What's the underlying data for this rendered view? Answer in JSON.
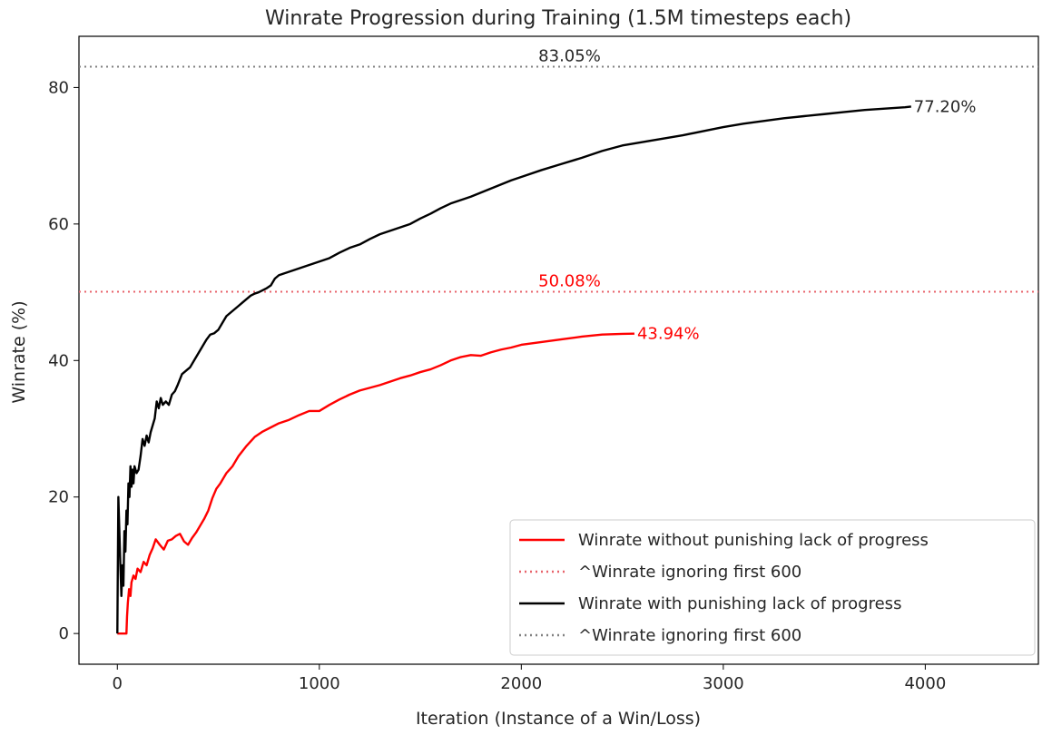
{
  "chart_data": {
    "type": "line",
    "title": "Winrate Progression during Training (1.5M timesteps each)",
    "xlabel": "Iteration (Instance of a Win/Loss)",
    "ylabel": "Winrate (%)",
    "xlim": [
      -190,
      4560
    ],
    "ylim": [
      -4.5,
      87.5
    ],
    "xticks": [
      0,
      1000,
      2000,
      3000,
      4000
    ],
    "yticks": [
      0,
      20,
      40,
      60,
      80
    ],
    "grid": false,
    "legend_position": "lower-right",
    "series": [
      {
        "name": "Winrate without punishing lack of progress",
        "color": "#ff0000",
        "style": "solid",
        "end_label": "43.94%",
        "points": [
          [
            0,
            0
          ],
          [
            20,
            0
          ],
          [
            30,
            0
          ],
          [
            40,
            0
          ],
          [
            45,
            0
          ],
          [
            48,
            2.5
          ],
          [
            52,
            4.5
          ],
          [
            58,
            6.5
          ],
          [
            65,
            5.5
          ],
          [
            70,
            7.5
          ],
          [
            80,
            8.5
          ],
          [
            90,
            8.0
          ],
          [
            100,
            9.5
          ],
          [
            115,
            9.0
          ],
          [
            130,
            10.5
          ],
          [
            145,
            10.0
          ],
          [
            160,
            11.5
          ],
          [
            175,
            12.5
          ],
          [
            190,
            13.8
          ],
          [
            210,
            13.0
          ],
          [
            230,
            12.3
          ],
          [
            250,
            13.6
          ],
          [
            270,
            13.8
          ],
          [
            290,
            14.3
          ],
          [
            310,
            14.6
          ],
          [
            330,
            13.5
          ],
          [
            350,
            13.0
          ],
          [
            370,
            14.0
          ],
          [
            390,
            14.8
          ],
          [
            410,
            15.8
          ],
          [
            430,
            16.8
          ],
          [
            450,
            18.0
          ],
          [
            470,
            19.8
          ],
          [
            490,
            21.2
          ],
          [
            510,
            22.0
          ],
          [
            540,
            23.5
          ],
          [
            570,
            24.5
          ],
          [
            600,
            26.0
          ],
          [
            640,
            27.5
          ],
          [
            680,
            28.8
          ],
          [
            720,
            29.6
          ],
          [
            760,
            30.2
          ],
          [
            800,
            30.8
          ],
          [
            850,
            31.3
          ],
          [
            900,
            32.0
          ],
          [
            950,
            32.6
          ],
          [
            1000,
            32.6
          ],
          [
            1050,
            33.5
          ],
          [
            1100,
            34.3
          ],
          [
            1150,
            35.0
          ],
          [
            1200,
            35.6
          ],
          [
            1250,
            36.0
          ],
          [
            1300,
            36.4
          ],
          [
            1350,
            36.9
          ],
          [
            1400,
            37.4
          ],
          [
            1450,
            37.8
          ],
          [
            1500,
            38.3
          ],
          [
            1550,
            38.7
          ],
          [
            1600,
            39.3
          ],
          [
            1650,
            40.0
          ],
          [
            1700,
            40.5
          ],
          [
            1750,
            40.8
          ],
          [
            1800,
            40.7
          ],
          [
            1850,
            41.2
          ],
          [
            1900,
            41.6
          ],
          [
            1950,
            41.9
          ],
          [
            2000,
            42.3
          ],
          [
            2100,
            42.7
          ],
          [
            2200,
            43.1
          ],
          [
            2300,
            43.5
          ],
          [
            2400,
            43.8
          ],
          [
            2500,
            43.9
          ],
          [
            2560,
            43.94
          ]
        ]
      },
      {
        "name": "^Winrate ignoring first 600",
        "color": "#e8636b",
        "style": "dotted",
        "hline": 50.08,
        "label": "50.08%"
      },
      {
        "name": "Winrate with punishing lack of progress",
        "color": "#000000",
        "style": "solid",
        "end_label": "77.20%",
        "points": [
          [
            0,
            0
          ],
          [
            5,
            20
          ],
          [
            10,
            15
          ],
          [
            15,
            10
          ],
          [
            20,
            5.5
          ],
          [
            25,
            10
          ],
          [
            30,
            7
          ],
          [
            35,
            15
          ],
          [
            40,
            12
          ],
          [
            45,
            18
          ],
          [
            50,
            16
          ],
          [
            55,
            22
          ],
          [
            60,
            20
          ],
          [
            65,
            24.5
          ],
          [
            70,
            21.5
          ],
          [
            75,
            24
          ],
          [
            80,
            22
          ],
          [
            85,
            24.5
          ],
          [
            95,
            23.5
          ],
          [
            105,
            24
          ],
          [
            115,
            26
          ],
          [
            125,
            28.5
          ],
          [
            135,
            27.5
          ],
          [
            145,
            29
          ],
          [
            155,
            28
          ],
          [
            165,
            29.5
          ],
          [
            175,
            30.5
          ],
          [
            185,
            31.5
          ],
          [
            195,
            34
          ],
          [
            205,
            33
          ],
          [
            215,
            34.5
          ],
          [
            225,
            33.5
          ],
          [
            240,
            34
          ],
          [
            255,
            33.5
          ],
          [
            270,
            35
          ],
          [
            285,
            35.5
          ],
          [
            300,
            36.5
          ],
          [
            320,
            38
          ],
          [
            340,
            38.5
          ],
          [
            360,
            39
          ],
          [
            380,
            40
          ],
          [
            400,
            41
          ],
          [
            420,
            42
          ],
          [
            440,
            43
          ],
          [
            460,
            43.8
          ],
          [
            480,
            44
          ],
          [
            500,
            44.5
          ],
          [
            520,
            45.5
          ],
          [
            540,
            46.5
          ],
          [
            560,
            47
          ],
          [
            580,
            47.5
          ],
          [
            600,
            48
          ],
          [
            620,
            48.5
          ],
          [
            640,
            49
          ],
          [
            660,
            49.5
          ],
          [
            680,
            49.8
          ],
          [
            700,
            50
          ],
          [
            720,
            50.3
          ],
          [
            740,
            50.6
          ],
          [
            760,
            51
          ],
          [
            780,
            52
          ],
          [
            800,
            52.5
          ],
          [
            850,
            53
          ],
          [
            900,
            53.5
          ],
          [
            950,
            54
          ],
          [
            1000,
            54.5
          ],
          [
            1050,
            55
          ],
          [
            1100,
            55.8
          ],
          [
            1150,
            56.5
          ],
          [
            1200,
            57
          ],
          [
            1250,
            57.8
          ],
          [
            1300,
            58.5
          ],
          [
            1350,
            59
          ],
          [
            1400,
            59.5
          ],
          [
            1450,
            60
          ],
          [
            1500,
            60.8
          ],
          [
            1550,
            61.5
          ],
          [
            1600,
            62.3
          ],
          [
            1650,
            63
          ],
          [
            1700,
            63.5
          ],
          [
            1750,
            64
          ],
          [
            1800,
            64.6
          ],
          [
            1850,
            65.2
          ],
          [
            1900,
            65.8
          ],
          [
            1950,
            66.4
          ],
          [
            2000,
            66.9
          ],
          [
            2100,
            67.9
          ],
          [
            2200,
            68.8
          ],
          [
            2300,
            69.7
          ],
          [
            2400,
            70.7
          ],
          [
            2500,
            71.5
          ],
          [
            2600,
            72
          ],
          [
            2700,
            72.5
          ],
          [
            2800,
            73
          ],
          [
            2900,
            73.6
          ],
          [
            3000,
            74.2
          ],
          [
            3100,
            74.7
          ],
          [
            3200,
            75.1
          ],
          [
            3300,
            75.5
          ],
          [
            3400,
            75.8
          ],
          [
            3500,
            76.1
          ],
          [
            3600,
            76.4
          ],
          [
            3700,
            76.7
          ],
          [
            3800,
            76.9
          ],
          [
            3900,
            77.1
          ],
          [
            3930,
            77.2
          ]
        ]
      },
      {
        "name": "^Winrate ignoring first 600",
        "color": "#808080",
        "style": "dotted",
        "hline": 83.05,
        "label": "83.05%"
      }
    ]
  }
}
